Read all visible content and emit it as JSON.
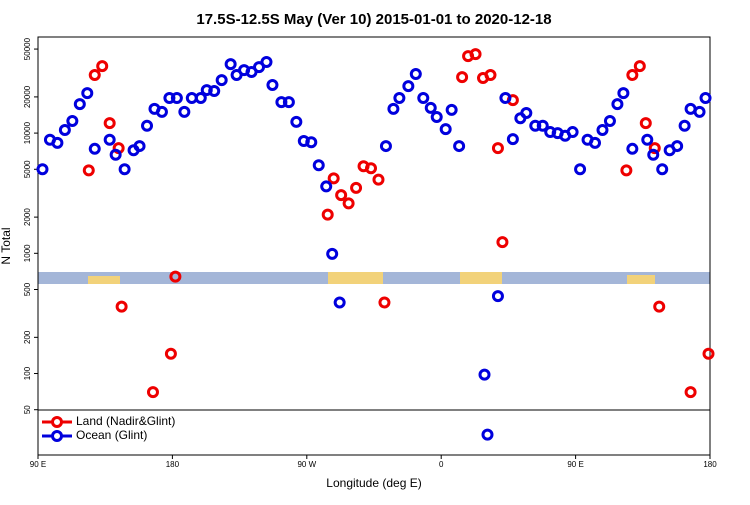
{
  "chart_data": {
    "type": "scatter",
    "title": "17.5S-12.5S May (Ver 10)   2015-01-01 to 2020-12-18",
    "x_label": "Longitude (deg E)",
    "y_label": "N Total",
    "log_y": true,
    "legend": "bottom-left",
    "xlim": [
      90,
      540
    ],
    "ylim": [
      21,
      63000
    ],
    "xticks": [
      {
        "value": 90,
        "label": "90 E"
      },
      {
        "value": 180,
        "label": "180"
      },
      {
        "value": 270,
        "label": "90 W"
      },
      {
        "value": 360,
        "label": "0"
      },
      {
        "value": 450,
        "label": "90 E"
      },
      {
        "value": 540,
        "label": "180"
      }
    ],
    "yticks": [
      50,
      100,
      200,
      500,
      1000,
      2000,
      5000,
      10000,
      20000,
      50000
    ],
    "series": [
      {
        "name": "Land (Nadir&Glint)",
        "color": "#ee0000",
        "x": [
          124,
          128,
          133,
          138,
          144,
          146,
          167,
          179,
          182,
          284,
          288,
          293,
          298,
          303,
          308,
          313,
          318,
          322,
          374,
          378,
          383,
          388,
          393,
          398,
          401,
          408,
          484,
          488,
          493,
          497,
          503,
          506,
          527,
          539
        ],
        "values": [
          4900,
          30400,
          36100,
          12100,
          7500,
          360,
          70,
          146,
          640,
          2100,
          4200,
          3050,
          2600,
          3500,
          5300,
          5100,
          4100,
          390,
          29200,
          43700,
          45400,
          28700,
          30400,
          7500,
          1240,
          18800,
          4900,
          30400,
          36100,
          12100,
          7500,
          360,
          70,
          146
        ]
      },
      {
        "name": "Ocean (Glint)",
        "color": "#0000dd",
        "x": [
          93,
          98,
          103,
          108,
          113,
          118,
          123,
          128,
          138,
          142,
          148,
          154,
          158,
          163,
          168,
          173,
          178,
          183,
          188,
          193,
          199,
          203,
          208,
          213,
          219,
          223,
          228,
          233,
          238,
          243,
          247,
          253,
          258,
          263,
          268,
          273,
          278,
          283,
          287,
          292,
          323,
          328,
          332,
          338,
          343,
          348,
          353,
          357,
          363,
          367,
          372,
          389,
          391,
          398,
          403,
          408,
          413,
          417,
          423,
          428,
          433,
          438,
          443,
          448,
          453,
          458,
          463,
          468,
          473,
          478,
          482,
          488,
          498,
          502,
          508,
          513,
          518,
          523,
          527,
          533,
          537
        ],
        "values": [
          5000,
          8800,
          8300,
          10600,
          12600,
          17400,
          21500,
          7400,
          8800,
          6600,
          5000,
          7200,
          7800,
          11500,
          15900,
          15000,
          19600,
          19600,
          15000,
          19600,
          19600,
          22800,
          22400,
          27600,
          37500,
          30400,
          33400,
          32200,
          35400,
          39000,
          25100,
          18100,
          18100,
          12400,
          8600,
          8400,
          5400,
          3600,
          990,
          390,
          7800,
          15900,
          19600,
          24600,
          31000,
          19600,
          16200,
          13600,
          10800,
          15600,
          7800,
          98,
          31,
          440,
          19600,
          8900,
          13300,
          14700,
          11500,
          11500,
          10200,
          10000,
          9500,
          10200,
          5000,
          8800,
          8300,
          10600,
          12600,
          17400,
          21500,
          7400,
          8800,
          6600,
          5000,
          7200,
          7800,
          11500,
          15900,
          15000,
          19600
        ]
      }
    ]
  }
}
